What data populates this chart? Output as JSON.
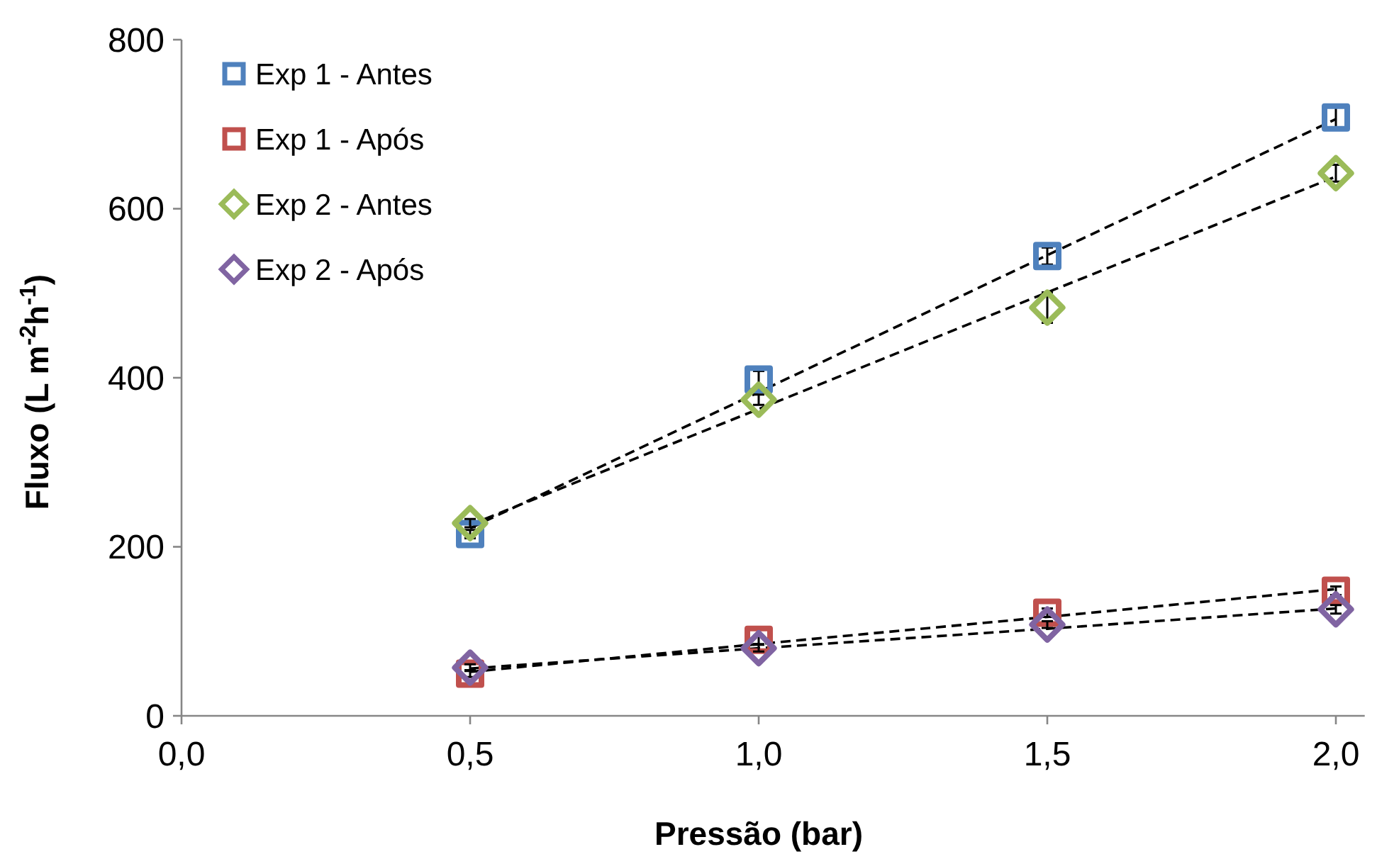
{
  "chart_data": {
    "type": "scatter",
    "xlabel": "Pressão (bar)",
    "ylabel": "Fluxo (L m$^{-2}$h$^{-1}$)",
    "xlim": [
      0,
      2.05
    ],
    "xticks": [
      {
        "value": 0,
        "label": "0,0"
      },
      {
        "value": 0.5,
        "label": "0,5"
      },
      {
        "value": 1,
        "label": "1,0"
      },
      {
        "value": 1.5,
        "label": "1,5"
      },
      {
        "value": 2,
        "label": "2,0"
      }
    ],
    "ylim": [
      0,
      800
    ],
    "yticks": [
      0,
      200,
      400,
      600,
      800
    ],
    "grid": false,
    "legend": "top left",
    "x": [
      0.5,
      1.0,
      1.5,
      2.0
    ],
    "series": [
      {
        "name": "Exp 1 - Antes",
        "color": "#4f81bd",
        "marker": "square",
        "values": [
          215,
          398,
          544,
          708
        ],
        "errors": [
          5,
          10,
          10,
          12
        ]
      },
      {
        "name": "Exp 1 - Após",
        "color": "#c0504d",
        "marker": "square",
        "values": [
          50,
          90,
          122,
          148
        ],
        "errors": [
          4,
          5,
          5,
          5
        ]
      },
      {
        "name": "Exp 2 - Antes",
        "color": "#9bbb59",
        "marker": "diamond",
        "values": [
          228,
          374,
          483,
          642
        ],
        "errors": [
          5,
          6,
          18,
          10
        ]
      },
      {
        "name": "Exp 2 - Após",
        "color": "#8064a2",
        "marker": "diamond",
        "values": [
          57,
          80,
          108,
          126
        ],
        "errors": [
          4,
          4,
          4,
          5
        ]
      },
      {
        "type": "line",
        "color": "#000000",
        "line_style": "dashed",
        "values": [
          222,
          383,
          545,
          706
        ]
      },
      {
        "type": "line",
        "color": "#000000",
        "line_style": "dashed",
        "values": [
          52,
          85,
          117,
          150
        ]
      },
      {
        "type": "line",
        "color": "#000000",
        "line_style": "dashed",
        "values": [
          226,
          363,
          501,
          638
        ]
      },
      {
        "type": "line",
        "color": "#000000",
        "line_style": "dashed",
        "values": [
          56,
          80,
          103,
          127
        ]
      }
    ]
  }
}
